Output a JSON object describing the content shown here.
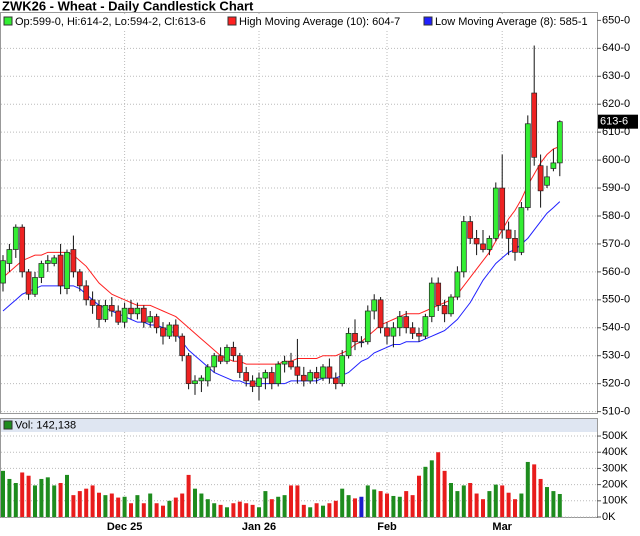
{
  "chart_data": [
    {
      "type": "candlestick",
      "title": "ZWK26 - Wheat - Daily Candlestick Chart",
      "ohlc_label": "Op:599-0, Hi:614-2, Lo:594-2, Cl:613-6",
      "last_label": "613-6",
      "up_color": "#33ee33",
      "down_color": "#ee2222",
      "flat_color": "#2222cc",
      "open": [
        556,
        563,
        568,
        576,
        560,
        552,
        558,
        563,
        563,
        566,
        554,
        568,
        560,
        555,
        550,
        548,
        543,
        548,
        546,
        542,
        547,
        545,
        547,
        542,
        544,
        540,
        537,
        541,
        537,
        530,
        520,
        521,
        521,
        526,
        530,
        528,
        533,
        530,
        524,
        521,
        519,
        522,
        524,
        520,
        527,
        528,
        526,
        523,
        521,
        524,
        522,
        526,
        522,
        520,
        530,
        538,
        535,
        535,
        546,
        550,
        540,
        537,
        540,
        544,
        540,
        538,
        537,
        544,
        556,
        548,
        545,
        551,
        560,
        578,
        572,
        570,
        568,
        572,
        590,
        575,
        572,
        567,
        583,
        624,
        598,
        591,
        597,
        599
      ],
      "high": [
        566,
        570,
        577,
        577,
        561,
        560,
        564,
        566,
        566,
        570,
        568,
        573,
        561,
        557,
        553,
        550,
        550,
        551,
        548,
        549,
        550,
        549,
        548,
        546,
        545,
        542,
        542,
        543,
        538,
        531,
        523,
        523,
        527,
        531,
        533,
        534,
        535,
        531,
        526,
        523,
        524,
        525,
        526,
        528,
        530,
        531,
        536,
        526,
        525,
        526,
        527,
        529,
        524,
        532,
        540,
        543,
        537,
        548,
        552,
        551,
        542,
        542,
        546,
        546,
        542,
        540,
        545,
        558,
        558,
        550,
        552,
        562,
        580,
        580,
        575,
        575,
        573,
        592,
        602,
        578,
        575,
        585,
        616,
        641,
        602,
        598,
        604,
        614.25
      ],
      "low": [
        553,
        560,
        565,
        558,
        550,
        551,
        556,
        560,
        562,
        552,
        552,
        558,
        553,
        548,
        545,
        540,
        542,
        544,
        541,
        540,
        543,
        543,
        540,
        540,
        538,
        534,
        536,
        535,
        528,
        518,
        516,
        517,
        519,
        524,
        527,
        527,
        528,
        522,
        519,
        517,
        514,
        518,
        518,
        519,
        524,
        525,
        520,
        519,
        520,
        520,
        521,
        520,
        518,
        519,
        529,
        532,
        533,
        534,
        543,
        538,
        534,
        533,
        537,
        538,
        536,
        535,
        536,
        542,
        546,
        542,
        544,
        550,
        558,
        570,
        566,
        567,
        566,
        571,
        572,
        566,
        564,
        566,
        582,
        598,
        583,
        590,
        596,
        594.25
      ],
      "close": [
        564,
        568,
        576,
        560,
        552,
        558,
        563,
        564,
        565,
        555,
        567,
        560,
        555,
        550,
        548,
        543,
        548,
        546,
        542,
        547,
        545,
        547,
        542,
        544,
        540,
        537,
        541,
        537,
        530,
        520,
        521,
        522,
        526,
        530,
        528,
        533,
        530,
        524,
        521,
        519,
        522,
        524,
        520,
        527,
        528,
        526,
        523,
        521,
        524,
        522,
        526,
        522,
        520,
        530,
        538,
        535,
        535,
        546,
        550,
        540,
        537,
        540,
        544,
        540,
        538,
        537,
        544,
        556,
        548,
        545,
        551,
        560,
        578,
        572,
        570,
        568,
        572,
        590,
        575,
        572,
        567,
        583,
        613,
        601,
        589,
        594,
        599,
        613.75
      ],
      "series": [
        {
          "name": "High Moving Average (10): 604-7",
          "color": "#ff2020",
          "values": [
            558,
            560,
            562,
            564,
            565,
            566,
            566,
            567,
            567,
            567,
            567,
            566,
            564,
            562,
            559,
            556,
            554,
            552,
            551,
            550,
            549,
            548,
            548,
            548,
            547,
            546,
            545,
            544,
            542,
            540,
            538,
            536,
            534,
            532,
            530,
            529,
            528,
            528,
            527,
            527,
            527,
            527,
            527,
            527,
            528,
            528,
            529,
            529,
            529,
            529,
            530,
            530,
            530,
            531,
            532,
            534,
            535,
            537,
            539,
            541,
            542,
            543,
            544,
            545,
            545,
            545,
            546,
            547,
            548,
            549,
            550,
            552,
            555,
            558,
            561,
            564,
            567,
            571,
            575,
            579,
            582,
            586,
            591,
            595,
            599,
            602,
            604,
            604.875
          ]
        },
        {
          "name": "Low Moving Average (8): 585-1",
          "color": "#2020ff",
          "values": [
            546,
            548,
            550,
            552,
            553,
            554,
            555,
            555,
            555,
            555,
            555,
            555,
            554,
            552,
            550,
            548,
            547,
            546,
            545,
            544,
            543,
            542,
            542,
            541,
            541,
            540,
            539,
            538,
            535,
            532,
            530,
            528,
            526,
            524,
            523,
            522,
            521,
            521,
            520,
            520,
            520,
            520,
            520,
            520,
            520,
            521,
            521,
            521,
            521,
            521,
            522,
            522,
            522,
            523,
            524,
            526,
            528,
            529,
            531,
            532,
            533,
            534,
            534,
            535,
            535,
            535,
            536,
            537,
            538,
            539,
            541,
            543,
            546,
            549,
            553,
            557,
            560,
            563,
            565,
            567,
            568,
            570,
            572,
            575,
            578,
            581,
            583,
            585.125
          ]
        }
      ],
      "ylim": [
        509.5,
        653
      ],
      "yticks": [
        {
          "value": 650,
          "label": "650-0"
        },
        {
          "value": 640,
          "label": "640-0"
        },
        {
          "value": 630,
          "label": "630-0"
        },
        {
          "value": 620,
          "label": "620-0"
        },
        {
          "value": 610,
          "label": "610-0"
        },
        {
          "value": 600,
          "label": "600-0"
        },
        {
          "value": 590,
          "label": "590-0"
        },
        {
          "value": 580,
          "label": "580-0"
        },
        {
          "value": 570,
          "label": "570-0"
        },
        {
          "value": 560,
          "label": "560-0"
        },
        {
          "value": 550,
          "label": "550-0"
        },
        {
          "value": 540,
          "label": "540-0"
        },
        {
          "value": 530,
          "label": "530-0"
        },
        {
          "value": 520,
          "label": "520-0"
        },
        {
          "value": 510,
          "label": "510-0"
        }
      ],
      "grid": true
    },
    {
      "type": "volume",
      "label": "Vol: 142,138",
      "up_color": "#1e8c1e",
      "down_color": "#e81c1c",
      "flat_color": "#1c1ccc",
      "categories": [
        null,
        null,
        null,
        null,
        null,
        null,
        null,
        null,
        null,
        null,
        null,
        null,
        null,
        null,
        null,
        null,
        null,
        null,
        null,
        "Dec 25",
        null,
        null,
        null,
        null,
        null,
        null,
        null,
        null,
        null,
        null,
        null,
        null,
        null,
        null,
        null,
        null,
        null,
        null,
        null,
        null,
        "Jan 26",
        null,
        null,
        null,
        null,
        null,
        null,
        null,
        null,
        null,
        null,
        null,
        null,
        null,
        null,
        null,
        null,
        null,
        null,
        null,
        "Feb",
        null,
        null,
        null,
        null,
        null,
        null,
        null,
        null,
        null,
        null,
        null,
        null,
        null,
        null,
        null,
        null,
        null,
        "Mar",
        null,
        null,
        null,
        null,
        null,
        null,
        null,
        null,
        null
      ],
      "values": [
        285000,
        235000,
        210000,
        275000,
        255000,
        195000,
        235000,
        245000,
        195000,
        210000,
        260000,
        135000,
        160000,
        175000,
        195000,
        150000,
        135000,
        145000,
        120000,
        125000,
        85000,
        135000,
        85000,
        145000,
        85000,
        70000,
        100000,
        120000,
        145000,
        260000,
        175000,
        145000,
        110000,
        85000,
        75000,
        60000,
        85000,
        95000,
        85000,
        75000,
        60000,
        160000,
        110000,
        125000,
        135000,
        195000,
        195000,
        75000,
        60000,
        85000,
        70000,
        85000,
        100000,
        175000,
        135000,
        115000,
        125000,
        195000,
        170000,
        160000,
        145000,
        130000,
        125000,
        160000,
        135000,
        255000,
        310000,
        350000,
        400000,
        285000,
        210000,
        160000,
        195000,
        210000,
        145000,
        110000,
        160000,
        200000,
        195000,
        150000,
        110000,
        145000,
        340000,
        325000,
        235000,
        185000,
        160000,
        142138
      ],
      "ylim": [
        0,
        525000
      ],
      "yticks": [
        {
          "value": 500000,
          "label": "500K"
        },
        {
          "value": 400000,
          "label": "400K"
        },
        {
          "value": 300000,
          "label": "300K"
        },
        {
          "value": 200000,
          "label": "200K"
        },
        {
          "value": 100000,
          "label": "100K"
        },
        {
          "value": 0,
          "label": "0K"
        }
      ],
      "grid": true
    }
  ]
}
